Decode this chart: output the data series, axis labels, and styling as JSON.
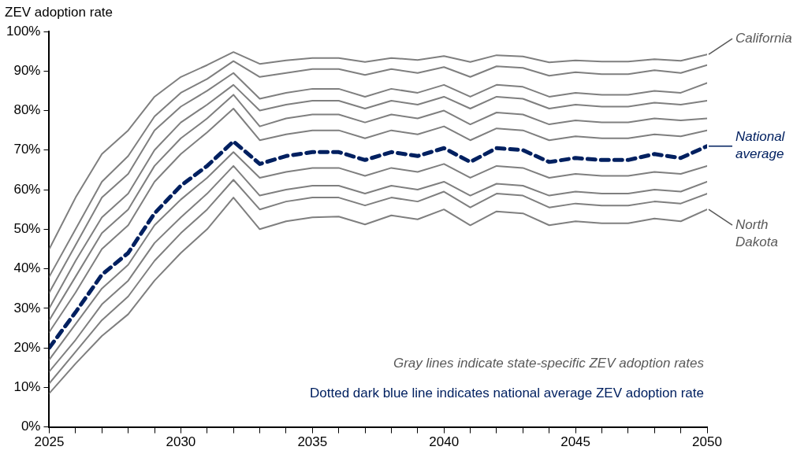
{
  "chart_data": {
    "type": "line",
    "ylabel": "ZEV adoption rate",
    "x": [
      2025,
      2026,
      2027,
      2028,
      2029,
      2030,
      2031,
      2032,
      2033,
      2034,
      2035,
      2036,
      2037,
      2038,
      2039,
      2040,
      2041,
      2042,
      2043,
      2044,
      2045,
      2046,
      2047,
      2048,
      2049,
      2050
    ],
    "xlim": [
      2025,
      2050
    ],
    "xticks": [
      2025,
      {
        "value": 2026,
        "label": null
      },
      {
        "value": 2027,
        "label": null
      },
      {
        "value": 2028,
        "label": null
      },
      {
        "value": 2029,
        "label": null
      },
      2030,
      {
        "value": 2031,
        "label": null
      },
      {
        "value": 2032,
        "label": null
      },
      {
        "value": 2033,
        "label": null
      },
      {
        "value": 2034,
        "label": null
      },
      2035,
      {
        "value": 2036,
        "label": null
      },
      {
        "value": 2037,
        "label": null
      },
      {
        "value": 2038,
        "label": null
      },
      {
        "value": 2039,
        "label": null
      },
      2040,
      {
        "value": 2041,
        "label": null
      },
      {
        "value": 2042,
        "label": null
      },
      {
        "value": 2043,
        "label": null
      },
      {
        "value": 2044,
        "label": null
      },
      2045,
      {
        "value": 2046,
        "label": null
      },
      {
        "value": 2047,
        "label": null
      },
      {
        "value": 2048,
        "label": null
      },
      {
        "value": 2049,
        "label": null
      },
      2050
    ],
    "ylim": [
      0,
      100
    ],
    "yticks": [
      {
        "value": 0,
        "label": "0%"
      },
      {
        "value": 10,
        "label": "10%"
      },
      {
        "value": 20,
        "label": "20%"
      },
      {
        "value": 30,
        "label": "30%"
      },
      {
        "value": 40,
        "label": "40%"
      },
      {
        "value": 50,
        "label": "50%"
      },
      {
        "value": 60,
        "label": "60%"
      },
      {
        "value": 70,
        "label": "70%"
      },
      {
        "value": 80,
        "label": "80%"
      },
      {
        "value": 90,
        "label": "90%"
      },
      {
        "value": 100,
        "label": "100%"
      }
    ],
    "grid": false,
    "legend": "right",
    "marker": "none",
    "series": [
      {
        "name": "California",
        "color": "#7f7f7f",
        "values": [
          45,
          58,
          69,
          75,
          83.5,
          88.5,
          91.5,
          94.8,
          91.8,
          92.7,
          93.3,
          93.3,
          92.3,
          93.3,
          92.8,
          93.8,
          92.3,
          94,
          93.7,
          92.2,
          92.7,
          92.4,
          92.4,
          93,
          92.6,
          94.2
        ]
      },
      {
        "color": "#7f7f7f",
        "values": [
          38,
          50,
          62,
          68.5,
          78.5,
          84.5,
          88,
          92.5,
          88.5,
          89.5,
          90.5,
          90.5,
          89,
          90.5,
          89.5,
          91,
          88.5,
          91.2,
          90.8,
          88.8,
          89.7,
          89.2,
          89.2,
          90.2,
          89.5,
          91.5
        ]
      },
      {
        "color": "#7f7f7f",
        "values": [
          34,
          46,
          58,
          64,
          75,
          81,
          85,
          89.5,
          83,
          84.5,
          85.5,
          85.5,
          83.5,
          85.5,
          84.5,
          86.5,
          83.5,
          86.5,
          86,
          83.5,
          84.5,
          84,
          84,
          85,
          84.5,
          87
        ]
      },
      {
        "color": "#7f7f7f",
        "values": [
          30,
          42,
          53,
          59,
          70,
          77,
          81.5,
          86.5,
          80,
          81.5,
          82.5,
          82.5,
          80.5,
          82.5,
          81.5,
          83.5,
          80.5,
          83.5,
          83,
          80.5,
          81.5,
          81,
          81,
          82,
          81.5,
          82.5
        ]
      },
      {
        "color": "#7f7f7f",
        "values": [
          27,
          38,
          49,
          55,
          66,
          73,
          78,
          84,
          76,
          78,
          79,
          79,
          77,
          79,
          78,
          80,
          76.5,
          79.5,
          79,
          76.5,
          77.5,
          77,
          77,
          78,
          77.5,
          78
        ]
      },
      {
        "color": "#7f7f7f",
        "values": [
          24,
          34,
          45,
          51,
          62,
          69,
          74.5,
          80.5,
          72.5,
          74,
          75,
          75,
          73,
          75,
          74,
          76,
          72.5,
          75.5,
          75,
          72.5,
          73.5,
          73,
          73,
          74,
          73.5,
          75
        ]
      },
      {
        "color": "#7f7f7f",
        "values": [
          17,
          26,
          35,
          41,
          51,
          57.5,
          63,
          69.5,
          63,
          64.5,
          65.5,
          65.5,
          63.5,
          65.5,
          64.5,
          66.5,
          63,
          66,
          65.5,
          63,
          64,
          63.5,
          63.5,
          64.5,
          64,
          66
        ]
      },
      {
        "color": "#7f7f7f",
        "values": [
          14,
          22,
          31,
          37,
          46.5,
          53,
          59,
          66,
          58.5,
          60,
          61,
          61,
          59,
          61,
          60,
          62,
          58.5,
          61.5,
          61,
          58.5,
          59.5,
          59,
          59,
          60,
          59.5,
          62
        ]
      },
      {
        "color": "#7f7f7f",
        "values": [
          11,
          19,
          27,
          33,
          42,
          49,
          55,
          62.5,
          55,
          57,
          58,
          58,
          56,
          58,
          57,
          59.5,
          55.5,
          59,
          58.5,
          55.5,
          56.5,
          56,
          56,
          57,
          56.5,
          59
        ]
      },
      {
        "name": "North Dakota",
        "color": "#7f7f7f",
        "values": [
          8.5,
          16,
          23,
          28.5,
          37,
          44,
          50,
          58,
          50,
          52,
          53,
          53.2,
          51.2,
          53.5,
          52.5,
          55,
          51,
          54.5,
          54,
          51,
          52,
          51.5,
          51.5,
          52.7,
          52,
          55
        ]
      },
      {
        "name": "National average",
        "color": "#002060",
        "line_style": "dashed",
        "values": [
          20,
          29,
          38.5,
          44,
          54,
          61,
          66,
          72.2,
          66.5,
          68.5,
          69.5,
          69.5,
          67.5,
          69.5,
          68.5,
          70.5,
          67,
          70.5,
          70,
          67,
          68,
          67.5,
          67.5,
          69,
          68,
          71
        ]
      }
    ],
    "annotations": [
      "Gray lines indicate state-specific ZEV adoption rates",
      "Dotted dark blue line indicates national average ZEV adoption rate"
    ]
  }
}
